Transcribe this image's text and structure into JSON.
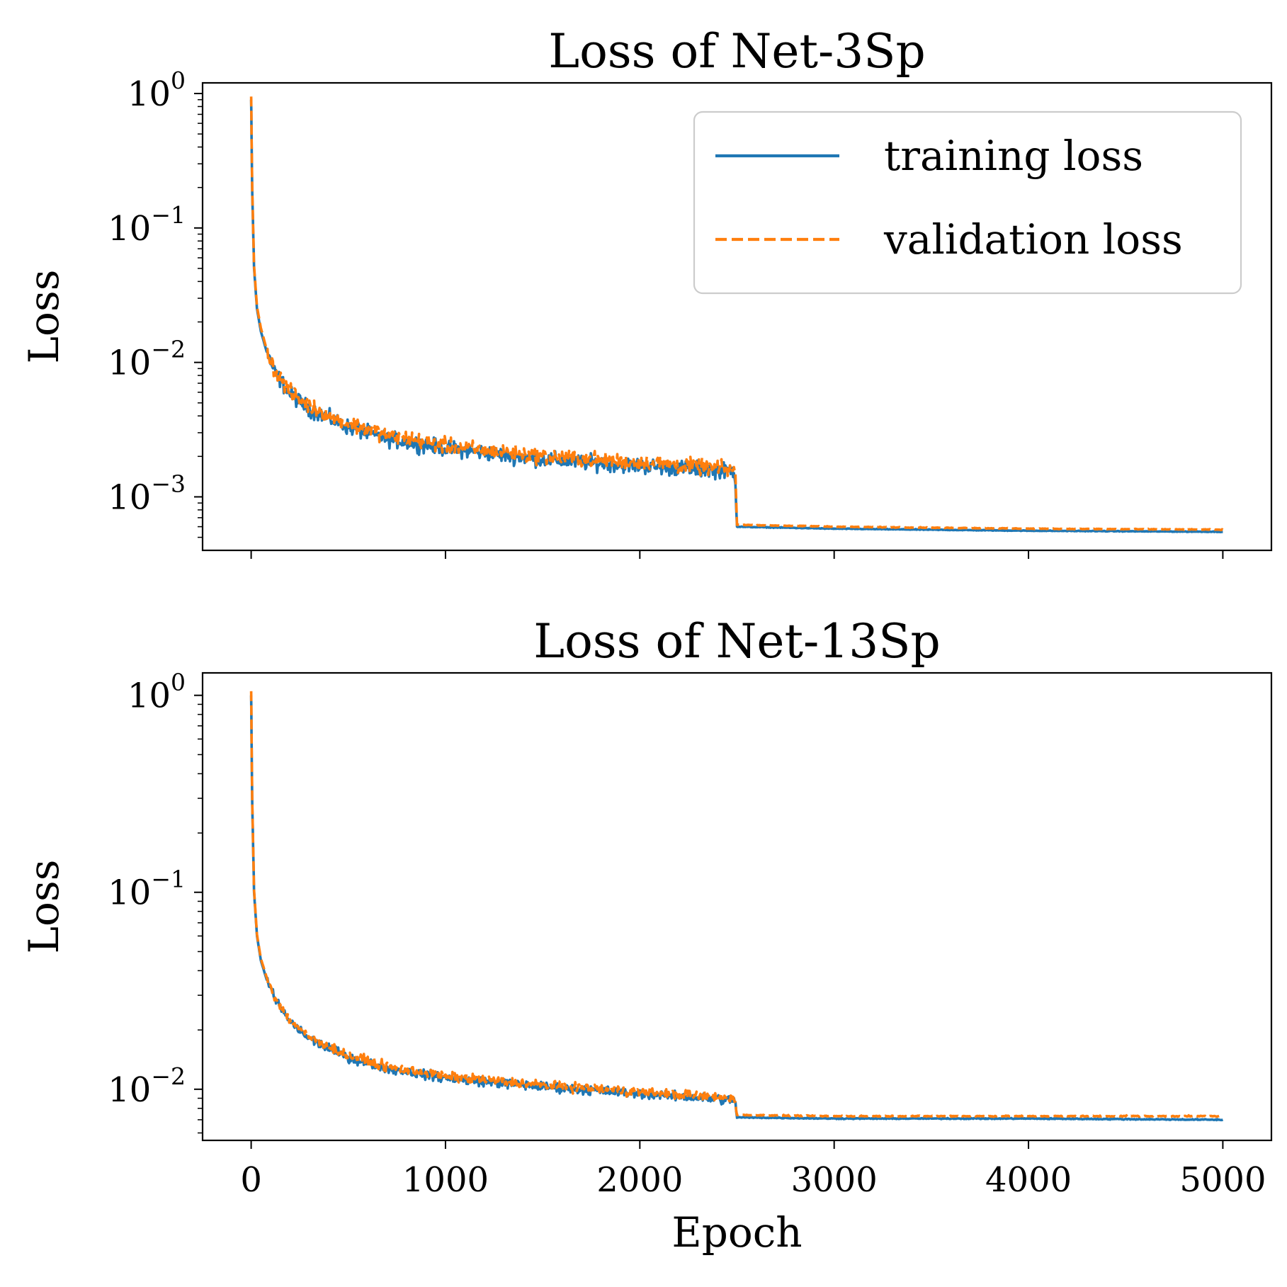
{
  "chart_data": [
    {
      "type": "line",
      "title": "Loss of Net-3Sp",
      "xlabel": "",
      "ylabel": "Loss",
      "yscale": "log",
      "xlim": [
        -250,
        5250
      ],
      "ylim": [
        0.0004,
        1.2
      ],
      "xticks": [
        0,
        1000,
        2000,
        3000,
        4000,
        5000
      ],
      "show_xticklabels": false,
      "yticks": [
        {
          "value": 1,
          "base": "10",
          "exp": "0"
        },
        {
          "value": 0.1,
          "base": "10",
          "exp": "−1"
        },
        {
          "value": 0.01,
          "base": "10",
          "exp": "−2"
        },
        {
          "value": 0.001,
          "base": "10",
          "exp": "−3"
        }
      ],
      "grid": false,
      "legend": {
        "placement": "top-right"
      },
      "series": [
        {
          "name": "training loss",
          "color": "#1f77b4",
          "style": "solid",
          "points": [
            [
              0,
              0.9
            ],
            [
              5,
              0.2
            ],
            [
              15,
              0.05
            ],
            [
              30,
              0.025
            ],
            [
              50,
              0.017
            ],
            [
              80,
              0.012
            ],
            [
              120,
              0.0085
            ],
            [
              200,
              0.0058
            ],
            [
              300,
              0.0045
            ],
            [
              500,
              0.0033
            ],
            [
              700,
              0.0027
            ],
            [
              1000,
              0.0023
            ],
            [
              1500,
              0.0019
            ],
            [
              2000,
              0.0017
            ],
            [
              2490,
              0.00155
            ],
            [
              2500,
              0.0006
            ],
            [
              3000,
              0.00058
            ],
            [
              4000,
              0.00056
            ],
            [
              5000,
              0.00055
            ]
          ]
        },
        {
          "name": "validation loss",
          "color": "#ff7f0e",
          "style": "dashed",
          "points": [
            [
              0,
              0.95
            ],
            [
              5,
              0.21
            ],
            [
              15,
              0.052
            ],
            [
              30,
              0.026
            ],
            [
              50,
              0.018
            ],
            [
              80,
              0.0125
            ],
            [
              120,
              0.0088
            ],
            [
              200,
              0.006
            ],
            [
              300,
              0.0047
            ],
            [
              500,
              0.0035
            ],
            [
              700,
              0.0029
            ],
            [
              1000,
              0.0024
            ],
            [
              1500,
              0.002
            ],
            [
              2000,
              0.0018
            ],
            [
              2490,
              0.0016
            ],
            [
              2500,
              0.00062
            ],
            [
              3000,
              0.0006
            ],
            [
              4000,
              0.00058
            ],
            [
              5000,
              0.00057
            ]
          ]
        }
      ]
    },
    {
      "type": "line",
      "title": "Loss of Net-13Sp",
      "xlabel": "Epoch",
      "ylabel": "Loss",
      "yscale": "log",
      "xlim": [
        -250,
        5250
      ],
      "ylim": [
        0.0055,
        1.3
      ],
      "xticks": [
        0,
        1000,
        2000,
        3000,
        4000,
        5000
      ],
      "show_xticklabels": true,
      "yticks": [
        {
          "value": 1,
          "base": "10",
          "exp": "0"
        },
        {
          "value": 0.1,
          "base": "10",
          "exp": "−1"
        },
        {
          "value": 0.01,
          "base": "10",
          "exp": "−2"
        }
      ],
      "grid": false,
      "series": [
        {
          "name": "training loss",
          "color": "#1f77b4",
          "style": "solid",
          "points": [
            [
              0,
              1.0
            ],
            [
              5,
              0.3
            ],
            [
              15,
              0.1
            ],
            [
              30,
              0.06
            ],
            [
              50,
              0.045
            ],
            [
              80,
              0.036
            ],
            [
              120,
              0.029
            ],
            [
              200,
              0.022
            ],
            [
              300,
              0.018
            ],
            [
              500,
              0.0145
            ],
            [
              700,
              0.0128
            ],
            [
              1000,
              0.0114
            ],
            [
              1500,
              0.0103
            ],
            [
              2000,
              0.0095
            ],
            [
              2490,
              0.0088
            ],
            [
              2500,
              0.0072
            ],
            [
              3000,
              0.0071
            ],
            [
              4000,
              0.0071
            ],
            [
              5000,
              0.007
            ]
          ]
        },
        {
          "name": "validation loss",
          "color": "#ff7f0e",
          "style": "dashed",
          "points": [
            [
              0,
              1.05
            ],
            [
              5,
              0.31
            ],
            [
              15,
              0.102
            ],
            [
              30,
              0.061
            ],
            [
              50,
              0.046
            ],
            [
              80,
              0.037
            ],
            [
              120,
              0.0295
            ],
            [
              200,
              0.0225
            ],
            [
              300,
              0.0184
            ],
            [
              500,
              0.0148
            ],
            [
              700,
              0.013
            ],
            [
              1000,
              0.0116
            ],
            [
              1500,
              0.0105
            ],
            [
              2000,
              0.0097
            ],
            [
              2490,
              0.009
            ],
            [
              2500,
              0.0074
            ],
            [
              3000,
              0.0073
            ],
            [
              4000,
              0.0073
            ],
            [
              5000,
              0.0073
            ]
          ]
        }
      ]
    }
  ]
}
